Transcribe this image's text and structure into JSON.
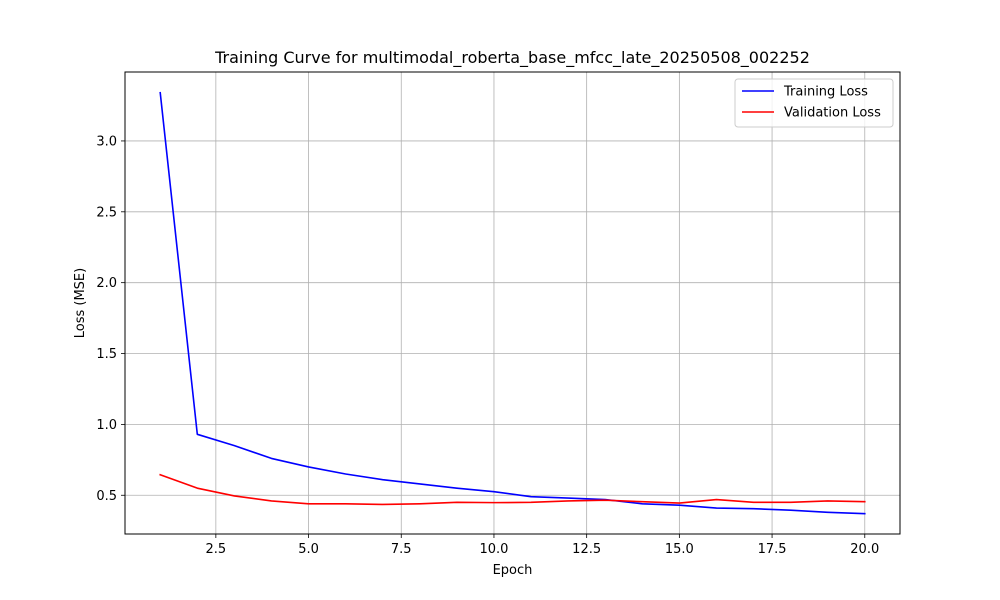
{
  "chart_data": {
    "type": "line",
    "title": "Training Curve for multimodal_roberta_base_mfcc_late_20250508_002252",
    "xlabel": "Epoch",
    "ylabel": "Loss (MSE)",
    "xlim": [
      0.05,
      20.95
    ],
    "ylim": [
      0.2267,
      3.4864
    ],
    "xticks": [
      2.5,
      5.0,
      7.5,
      10.0,
      12.5,
      15.0,
      17.5,
      20.0
    ],
    "xtick_labels": [
      "2.5",
      "5.0",
      "7.5",
      "10.0",
      "12.5",
      "15.0",
      "17.5",
      "20.0"
    ],
    "yticks": [
      0.5,
      1.0,
      1.5,
      2.0,
      2.5,
      3.0
    ],
    "ytick_labels": [
      "0.5",
      "1.0",
      "1.5",
      "2.0",
      "2.5",
      "3.0"
    ],
    "grid": true,
    "legend_position": "top-right",
    "x": [
      1,
      2,
      3,
      4,
      5,
      6,
      7,
      8,
      9,
      10,
      11,
      12,
      13,
      14,
      15,
      16,
      17,
      18,
      19,
      20
    ],
    "series": [
      {
        "name": "Training Loss",
        "color": "#0000ff",
        "values": [
          3.34,
          0.93,
          0.85,
          0.76,
          0.7,
          0.65,
          0.61,
          0.58,
          0.55,
          0.525,
          0.49,
          0.48,
          0.47,
          0.44,
          0.43,
          0.41,
          0.405,
          0.395,
          0.38,
          0.37
        ]
      },
      {
        "name": "Validation Loss",
        "color": "#ff0000",
        "values": [
          0.645,
          0.55,
          0.495,
          0.46,
          0.44,
          0.44,
          0.435,
          0.44,
          0.45,
          0.448,
          0.45,
          0.46,
          0.465,
          0.455,
          0.445,
          0.47,
          0.45,
          0.45,
          0.46,
          0.455
        ]
      }
    ]
  }
}
